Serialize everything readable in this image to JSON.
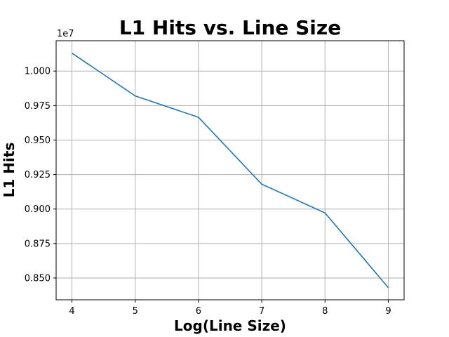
{
  "chart_data": {
    "type": "line",
    "title": "L1 Hits vs. Line Size",
    "xlabel": "Log(Line Size)",
    "ylabel": "L1 Hits",
    "y_offset_label": "1e7",
    "x": [
      4,
      5,
      6,
      7,
      8,
      9
    ],
    "series": [
      {
        "values": [
          10130000,
          9820000,
          9665000,
          9180000,
          8972000,
          8430000
        ]
      }
    ],
    "xlim": [
      3.75,
      9.25
    ],
    "ylim": [
      8.342,
      10.22
    ],
    "x_ticks": [
      4,
      5,
      6,
      7,
      8,
      9
    ],
    "x_tick_labels": [
      "4",
      "5",
      "6",
      "7",
      "8",
      "9"
    ],
    "y_ticks": [
      8.5,
      8.75,
      9.0,
      9.25,
      9.5,
      9.75,
      10.0
    ],
    "y_tick_labels": [
      "0.850",
      "0.875",
      "0.900",
      "0.925",
      "0.950",
      "0.975",
      "1.000"
    ],
    "grid": true,
    "line_color": "#1f77b4",
    "grid_color": "#b0b0b0"
  }
}
